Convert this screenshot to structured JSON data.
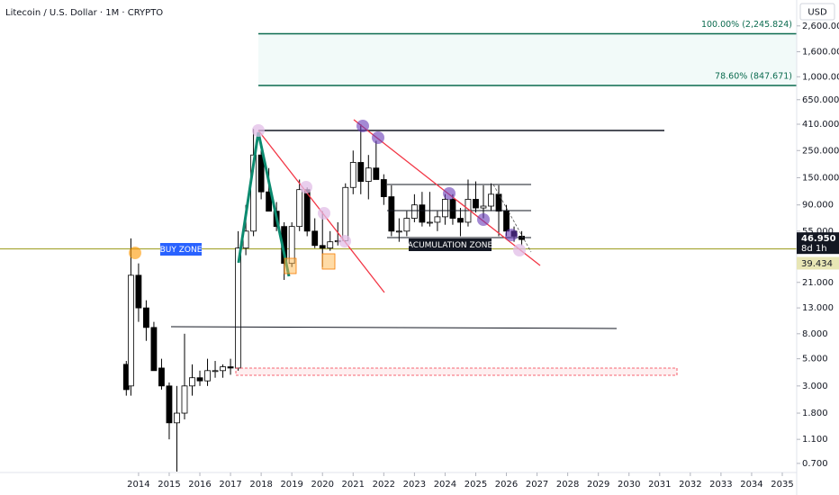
{
  "header": {
    "symbol": "Litecoin / U.S. Dollar · 1M · CRYPTO",
    "currency": "USD"
  },
  "chart_data": {
    "type": "candlestick",
    "x": [
      2013.6,
      2013.75,
      2014.0,
      2014.25,
      2014.5,
      2014.75,
      2015.0,
      2015.25,
      2015.5,
      2015.75,
      2016.0,
      2016.25,
      2016.5,
      2016.75,
      2017.0,
      2017.25,
      2017.5,
      2017.75,
      2018.0,
      2018.25,
      2018.5,
      2018.75,
      2019.0,
      2019.25,
      2019.5,
      2019.75,
      2020.0,
      2020.25,
      2020.5,
      2020.75,
      2021.0,
      2021.25,
      2021.5,
      2021.75,
      2022.0,
      2022.25,
      2022.5,
      2022.75,
      2023.0,
      2023.25,
      2023.5,
      2023.75,
      2024.0,
      2024.25,
      2024.5,
      2024.75,
      2025.0,
      2025.25,
      2025.5,
      2025.75,
      2026.0,
      2026.25,
      2026.5
    ],
    "open": [
      4.5,
      3,
      24,
      13,
      9,
      4.2,
      3,
      1.5,
      1.8,
      3,
      3.5,
      3.3,
      4,
      4,
      4.3,
      4.2,
      40,
      55,
      230,
      115,
      80,
      60,
      30,
      60,
      120,
      55,
      42,
      40,
      45,
      46,
      125,
      200,
      140,
      180,
      145,
      105,
      55,
      55,
      70,
      90,
      65,
      65,
      72,
      100,
      70,
      65,
      100,
      85,
      88,
      110,
      80,
      55,
      50
    ],
    "high": [
      4.8,
      48,
      30,
      15,
      10,
      5,
      3.2,
      3,
      8,
      4.5,
      4,
      5,
      4.8,
      4.5,
      5,
      55,
      90,
      375,
      250,
      180,
      95,
      65,
      65,
      145,
      125,
      70,
      80,
      55,
      65,
      135,
      250,
      410,
      230,
      300,
      160,
      130,
      70,
      80,
      110,
      115,
      115,
      80,
      110,
      110,
      85,
      145,
      140,
      130,
      135,
      130,
      90,
      60,
      55
    ],
    "low": [
      2.5,
      2.5,
      10,
      7,
      5,
      2.8,
      1.1,
      0.6,
      1.6,
      2.5,
      3,
      3,
      3.5,
      3.5,
      3.7,
      4,
      35,
      50,
      100,
      80,
      55,
      22,
      28,
      55,
      50,
      40,
      28,
      38,
      42,
      45,
      110,
      110,
      100,
      150,
      90,
      50,
      45,
      50,
      65,
      60,
      60,
      55,
      62,
      62,
      50,
      60,
      78,
      70,
      80,
      50,
      50,
      45,
      42
    ],
    "close": [
      2.8,
      24,
      13,
      9,
      4,
      3,
      1.5,
      1.8,
      3,
      3.5,
      3.3,
      4,
      4,
      4.3,
      4.2,
      40,
      55,
      230,
      115,
      80,
      60,
      30,
      60,
      120,
      55,
      42,
      40,
      45,
      46,
      125,
      200,
      140,
      180,
      145,
      105,
      55,
      55,
      70,
      90,
      65,
      65,
      72,
      100,
      70,
      65,
      100,
      85,
      88,
      110,
      80,
      55,
      50,
      46.95
    ],
    "xlim": [
      2009.48,
      2035.47
    ],
    "xticks": [
      2014,
      2015,
      2016,
      2017,
      2018,
      2019,
      2020,
      2021,
      2022,
      2023,
      2024,
      2025,
      2026,
      2027,
      2028,
      2029,
      2030,
      2031,
      2032,
      2033,
      2034,
      2035
    ],
    "ylim": [
      0.59,
      4230
    ],
    "log_scale": true,
    "yticks": [
      {
        "value": 0.7,
        "label": "0.700"
      },
      {
        "value": 1.1,
        "label": "1.100"
      },
      {
        "value": 1.8,
        "label": "1.800"
      },
      {
        "value": 3,
        "label": "3.000"
      },
      {
        "value": 5,
        "label": "5.000"
      },
      {
        "value": 8,
        "label": "8.000"
      },
      {
        "value": 13,
        "label": "13.000"
      },
      {
        "value": 21,
        "label": "21.000"
      },
      {
        "value": 55,
        "label": "55.000"
      },
      {
        "value": 90,
        "label": "90.000"
      },
      {
        "value": 150,
        "label": "150.000"
      },
      {
        "value": 250,
        "label": "250.000"
      },
      {
        "value": 410,
        "label": "410.000"
      },
      {
        "value": 650,
        "label": "650.000"
      },
      {
        "value": 1000,
        "label": "1,000.000"
      },
      {
        "value": 1600,
        "label": "1,600.000"
      },
      {
        "value": 2600,
        "label": "2,600.000"
      }
    ],
    "up_color": "#ffffff",
    "down_color": "#000000",
    "last_price": {
      "value": 46.95,
      "label": "46.950",
      "countdown": "8d 1h"
    },
    "level": {
      "value": 39.434,
      "label": "39.434"
    },
    "fib_levels": [
      {
        "value": 2245.824,
        "label": "100.00% (2,245.824)"
      },
      {
        "value": 847.671,
        "label": "78.60% (847.671)"
      }
    ],
    "annotations": [
      "BUY ZONE",
      "ACUMULATION ZONE"
    ]
  }
}
